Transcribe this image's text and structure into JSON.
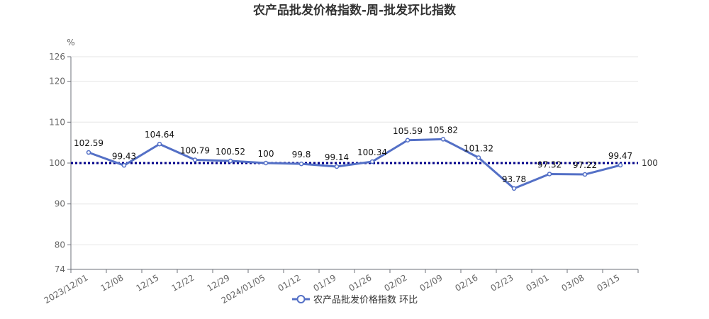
{
  "chart_data": {
    "type": "line",
    "title": "农产品批发价格指数-周-批发环比指数",
    "ylabel": "%",
    "xlabel": "",
    "categories": [
      "2023/12/01",
      "12/08",
      "12/15",
      "12/22",
      "12/29",
      "2024/01/05",
      "01/12",
      "01/19",
      "01/26",
      "02/02",
      "02/09",
      "02/16",
      "02/23",
      "03/01",
      "03/08",
      "03/15"
    ],
    "series": [
      {
        "name": "农产品批发价格指数 环比",
        "values": [
          102.59,
          99.43,
          104.64,
          100.79,
          100.52,
          100,
          99.8,
          99.14,
          100.34,
          105.59,
          105.82,
          101.32,
          93.78,
          97.32,
          97.22,
          99.47
        ],
        "color": "#5470c6"
      }
    ],
    "ylim": [
      74,
      126
    ],
    "yticks": [
      74,
      80,
      90,
      100,
      110,
      120,
      126
    ],
    "reference_line": {
      "value": 100,
      "label": "100",
      "color": "#00008b",
      "style": "dotted"
    },
    "grid": true,
    "legend_position": "bottom-center"
  }
}
